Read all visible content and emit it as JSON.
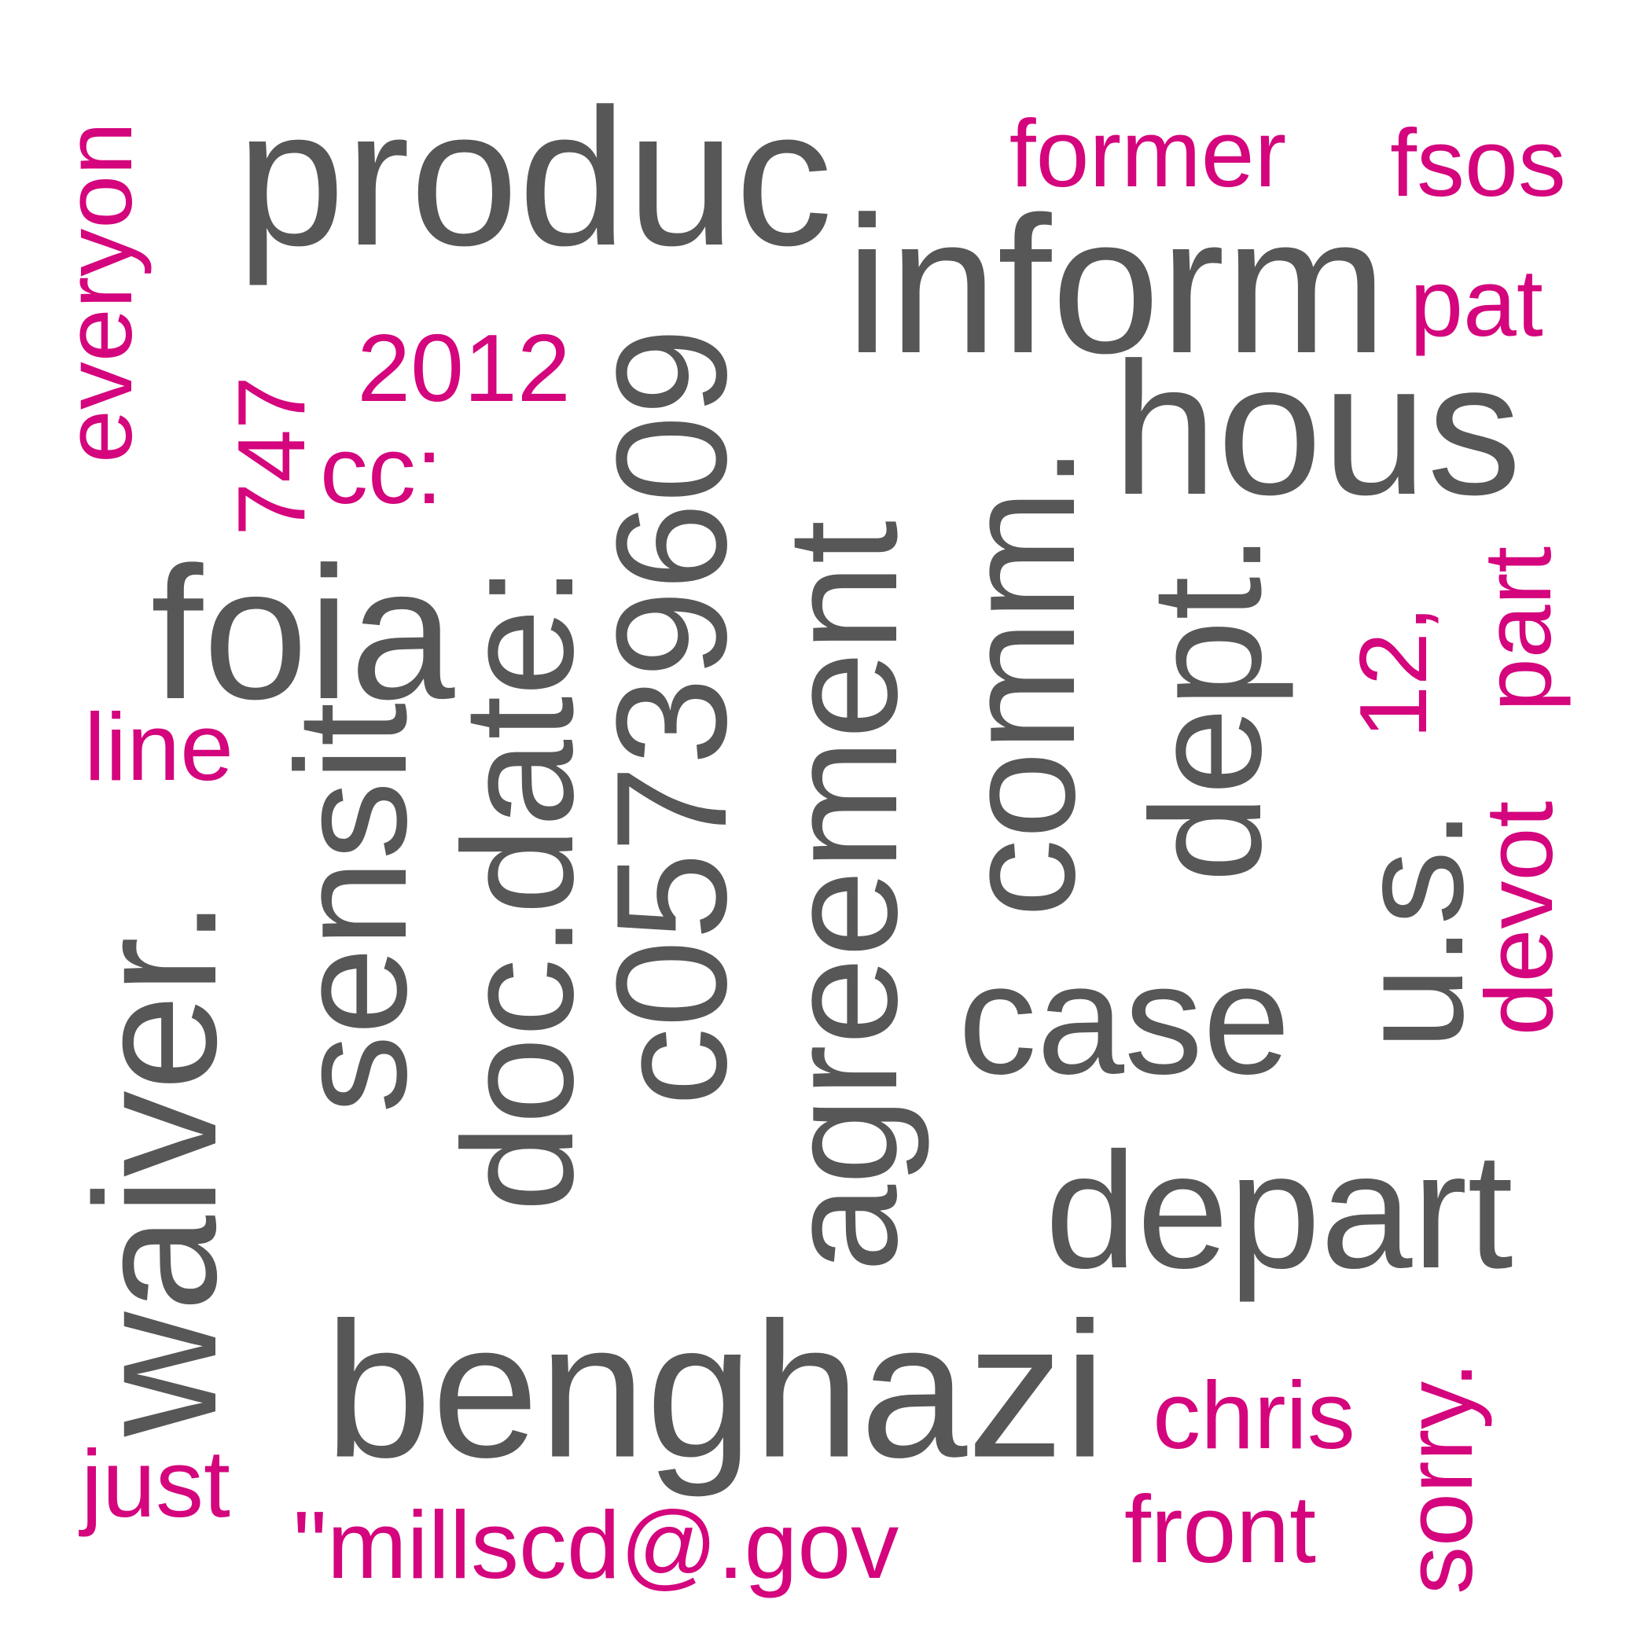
{
  "colors": {
    "background": "#ffffff",
    "dark": "#575757",
    "accent": "#d4057d"
  },
  "words": [
    {
      "name": "word-produc",
      "text": "produc"
    },
    {
      "name": "word-former",
      "text": "former"
    },
    {
      "name": "word-fsos",
      "text": "fsos"
    },
    {
      "name": "word-everyon",
      "text": "everyon"
    },
    {
      "name": "word-inform",
      "text": "inform"
    },
    {
      "name": "word-pat",
      "text": "pat"
    },
    {
      "name": "word-2012",
      "text": "2012"
    },
    {
      "name": "word-747",
      "text": "747"
    },
    {
      "name": "word-cc",
      "text": "cc:"
    },
    {
      "name": "word-c05739609",
      "text": "c05739609"
    },
    {
      "name": "word-agreement",
      "text": "agreement"
    },
    {
      "name": "word-comm",
      "text": "comm."
    },
    {
      "name": "word-hous",
      "text": "hous"
    },
    {
      "name": "word-doc-date",
      "text": "doc.date:"
    },
    {
      "name": "word-foia",
      "text": "foia"
    },
    {
      "name": "word-sensit",
      "text": "sensit"
    },
    {
      "name": "word-dept",
      "text": "dept."
    },
    {
      "name": "word-12",
      "text": "12,"
    },
    {
      "name": "word-part",
      "text": "part"
    },
    {
      "name": "word-line",
      "text": "line"
    },
    {
      "name": "word-waiver",
      "text": "waiver."
    },
    {
      "name": "word-devot",
      "text": "devot"
    },
    {
      "name": "word-us",
      "text": "u.s."
    },
    {
      "name": "word-case",
      "text": "case"
    },
    {
      "name": "word-depart",
      "text": "depart"
    },
    {
      "name": "word-benghazi",
      "text": "benghazi"
    },
    {
      "name": "word-sorry",
      "text": "sorry."
    },
    {
      "name": "word-chris",
      "text": "chris"
    },
    {
      "name": "word-just",
      "text": "just"
    },
    {
      "name": "word-millscd",
      "text": "\"millscd@.gov"
    },
    {
      "name": "word-front",
      "text": "front"
    }
  ]
}
